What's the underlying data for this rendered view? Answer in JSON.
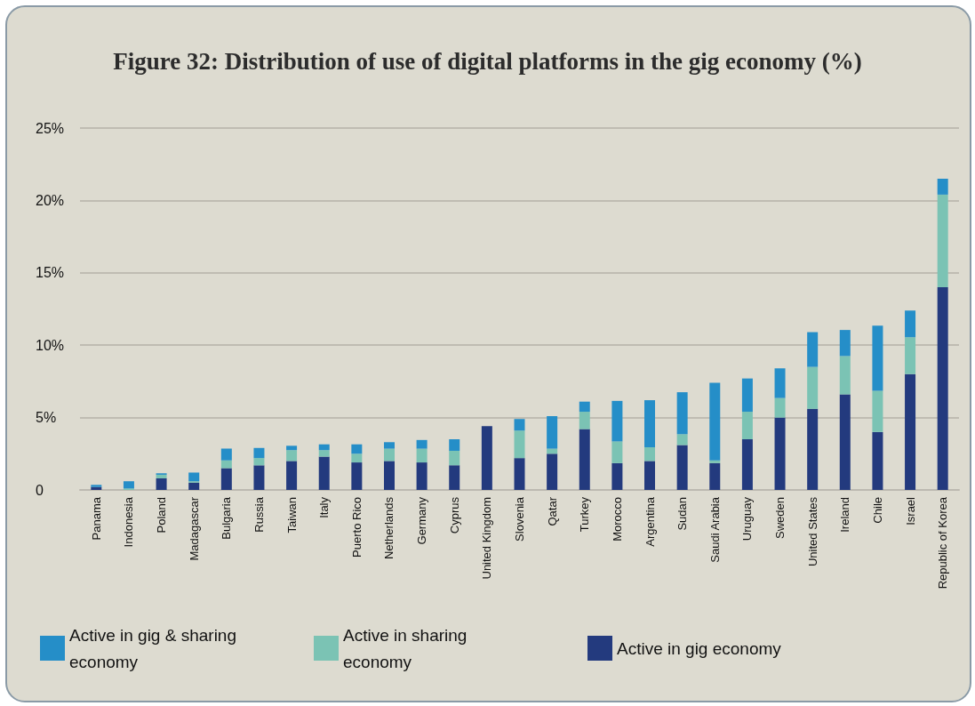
{
  "chart_data": {
    "type": "bar",
    "title": "Figure 32: Distribution of use of digital platforms in the gig economy (%)",
    "categories": [
      "Panama",
      "Indonesia",
      "Poland",
      "Madagascar",
      "Bulgaria",
      "Russia",
      "Taiwan",
      "Italy",
      "Puerto Rico",
      "Netherlands",
      "Germany",
      "Cyprus",
      "United Kingdom",
      "Slovenia",
      "Qatar",
      "Turkey",
      "Morocco",
      "Argentina",
      "Sudan",
      "Saudi Arabia",
      "Uruguay",
      "Sweden",
      "United States",
      "Ireland",
      "Chile",
      "Israel",
      "Republic of Korea"
    ],
    "stacked": true,
    "series": [
      {
        "name": "Active in gig economy",
        "color": "#233a7e",
        "values": [
          0.2,
          0,
          0.8,
          0.5,
          1.5,
          1.7,
          2.0,
          2.3,
          1.9,
          2.0,
          1.9,
          1.7,
          4.4,
          2.2,
          2.5,
          4.2,
          1.85,
          2.0,
          3.1,
          1.85,
          3.5,
          5.0,
          5.6,
          6.6,
          4.0,
          8.0,
          14.0
        ]
      },
      {
        "name": "Active in sharing economy",
        "color": "#7bc3b4",
        "values": [
          0,
          0.1,
          0.25,
          0.1,
          0.55,
          0.5,
          0.75,
          0.45,
          0.6,
          0.85,
          0.95,
          1.0,
          0,
          1.9,
          0.35,
          1.2,
          1.5,
          0.95,
          0.75,
          0.2,
          1.9,
          1.35,
          2.9,
          2.65,
          2.85,
          2.55,
          6.4
        ]
      },
      {
        "name": "Active in gig & sharing economy",
        "color": "#258ec8",
        "values": [
          0.15,
          0.5,
          0.1,
          0.6,
          0.8,
          0.7,
          0.3,
          0.4,
          0.65,
          0.45,
          0.6,
          0.8,
          0,
          0.8,
          2.25,
          0.7,
          2.8,
          3.25,
          2.9,
          5.35,
          2.3,
          2.05,
          2.4,
          1.8,
          4.5,
          1.85,
          1.1
        ]
      }
    ],
    "ylim": [
      0,
      25
    ],
    "yticks": [
      {
        "value": 0,
        "label": "0"
      },
      {
        "value": 5,
        "label": "5%"
      },
      {
        "value": 10,
        "label": "10%"
      },
      {
        "value": 15,
        "label": "15%"
      },
      {
        "value": 20,
        "label": "20%"
      },
      {
        "value": 25,
        "label": "25%"
      }
    ],
    "grid": "y",
    "legend": "bottom"
  }
}
